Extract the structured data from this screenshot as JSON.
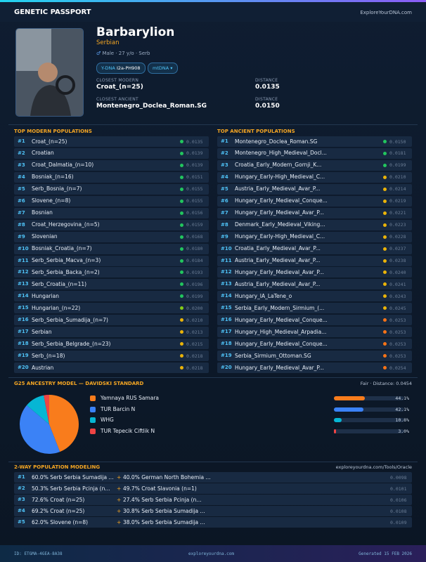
{
  "header": {
    "title": "GENETIC PASSPORT",
    "site": "ExploreYourDNA.com"
  },
  "profile": {
    "name": "Barbarylion",
    "ethnicity": "Serbian",
    "sex": "Male",
    "age": "27 y/o",
    "group": "Serb",
    "ydna_label": "Y-DNA",
    "ydna": "I2a-PH908",
    "mtdna_label": "mtDNA",
    "closest_modern_label": "CLOSEST MODERN",
    "closest_modern": "Croat_(n=25)",
    "modern_distance_label": "DISTANCE",
    "modern_distance": "0.0135",
    "closest_ancient_label": "CLOSEST ANCIENT",
    "closest_ancient": "Montenegro_Doclea_Roman.SG",
    "ancient_distance_label": "DISTANCE",
    "ancient_distance": "0.0150"
  },
  "modern": {
    "title": "TOP MODERN POPULATIONS",
    "rows": [
      {
        "rank": "#1",
        "name": "Croat_(n=25)",
        "distance": "0.0135",
        "dot": "#22c55e"
      },
      {
        "rank": "#2",
        "name": "Croatian",
        "distance": "0.0139",
        "dot": "#22c55e"
      },
      {
        "rank": "#3",
        "name": "Croat_Dalmatia_(n=10)",
        "distance": "0.0139",
        "dot": "#22c55e"
      },
      {
        "rank": "#4",
        "name": "Bosniak_(n=16)",
        "distance": "0.0151",
        "dot": "#22c55e"
      },
      {
        "rank": "#5",
        "name": "Serb_Bosnia_(n=7)",
        "distance": "0.0155",
        "dot": "#22c55e"
      },
      {
        "rank": "#6",
        "name": "Slovene_(n=8)",
        "distance": "0.0155",
        "dot": "#22c55e"
      },
      {
        "rank": "#7",
        "name": "Bosnian",
        "distance": "0.0156",
        "dot": "#22c55e"
      },
      {
        "rank": "#8",
        "name": "Croat_Herzegovina_(n=5)",
        "distance": "0.0159",
        "dot": "#22c55e"
      },
      {
        "rank": "#9",
        "name": "Slovenian",
        "distance": "0.0168",
        "dot": "#22c55e"
      },
      {
        "rank": "#10",
        "name": "Bosniak_Croatia_(n=7)",
        "distance": "0.0180",
        "dot": "#22c55e"
      },
      {
        "rank": "#11",
        "name": "Serb_Serbia_Macva_(n=3)",
        "distance": "0.0184",
        "dot": "#22c55e"
      },
      {
        "rank": "#12",
        "name": "Serb_Serbia_Backa_(n=2)",
        "distance": "0.0193",
        "dot": "#22c55e"
      },
      {
        "rank": "#13",
        "name": "Serb_Croatia_(n=11)",
        "distance": "0.0196",
        "dot": "#22c55e"
      },
      {
        "rank": "#14",
        "name": "Hungarian",
        "distance": "0.0199",
        "dot": "#22c55e"
      },
      {
        "rank": "#15",
        "name": "Hungarian_(n=22)",
        "distance": "0.0200",
        "dot": "#84cc16"
      },
      {
        "rank": "#16",
        "name": "Serb_Serbia_Sumadija_(n=7)",
        "distance": "0.0210",
        "dot": "#eab308"
      },
      {
        "rank": "#17",
        "name": "Serbian",
        "distance": "0.0213",
        "dot": "#eab308"
      },
      {
        "rank": "#18",
        "name": "Serb_Serbia_Belgrade_(n=23)",
        "distance": "0.0215",
        "dot": "#eab308"
      },
      {
        "rank": "#19",
        "name": "Serb_(n=18)",
        "distance": "0.0218",
        "dot": "#eab308"
      },
      {
        "rank": "#20",
        "name": "Austrian",
        "distance": "0.0218",
        "dot": "#eab308"
      }
    ]
  },
  "ancient": {
    "title": "TOP ANCIENT POPULATIONS",
    "rows": [
      {
        "rank": "#1",
        "name": "Montenegro_Doclea_Roman.SG",
        "distance": "0.0150",
        "dot": "#22c55e"
      },
      {
        "rank": "#2",
        "name": "Montenegro_High_Medieval_Docl...",
        "distance": "0.0181",
        "dot": "#22c55e"
      },
      {
        "rank": "#3",
        "name": "Croatia_Early_Modern_Gornji_K...",
        "distance": "0.0199",
        "dot": "#22c55e"
      },
      {
        "rank": "#4",
        "name": "Hungary_Early-High_Medieval_C...",
        "distance": "0.0210",
        "dot": "#eab308"
      },
      {
        "rank": "#5",
        "name": "Austria_Early_Medieval_Avar_P...",
        "distance": "0.0214",
        "dot": "#eab308"
      },
      {
        "rank": "#6",
        "name": "Hungary_Early_Medieval_Conque...",
        "distance": "0.0219",
        "dot": "#eab308"
      },
      {
        "rank": "#7",
        "name": "Hungary_Early_Medieval_Avar_P...",
        "distance": "0.0221",
        "dot": "#eab308"
      },
      {
        "rank": "#8",
        "name": "Denmark_Early_Medieval_Viking...",
        "distance": "0.0223",
        "dot": "#eab308"
      },
      {
        "rank": "#9",
        "name": "Hungary_Early-High_Medieval_C...",
        "distance": "0.0228",
        "dot": "#eab308"
      },
      {
        "rank": "#10",
        "name": "Croatia_Early_Medieval_Avar_P...",
        "distance": "0.0237",
        "dot": "#eab308"
      },
      {
        "rank": "#11",
        "name": "Austria_Early_Medieval_Avar_P...",
        "distance": "0.0238",
        "dot": "#eab308"
      },
      {
        "rank": "#12",
        "name": "Hungary_Early_Medieval_Avar_P...",
        "distance": "0.0240",
        "dot": "#eab308"
      },
      {
        "rank": "#13",
        "name": "Austria_Early_Medieval_Avar_P...",
        "distance": "0.0241",
        "dot": "#eab308"
      },
      {
        "rank": "#14",
        "name": "Hungary_IA_LaTene_o",
        "distance": "0.0243",
        "dot": "#eab308"
      },
      {
        "rank": "#15",
        "name": "Serbia_Early_Modern_Sirmium_(...",
        "distance": "0.0245",
        "dot": "#eab308"
      },
      {
        "rank": "#16",
        "name": "Hungary_Early_Medieval_Conque...",
        "distance": "0.0253",
        "dot": "#f97316"
      },
      {
        "rank": "#17",
        "name": "Hungary_High_Medieval_Arpadia...",
        "distance": "0.0253",
        "dot": "#f97316"
      },
      {
        "rank": "#18",
        "name": "Hungary_Early_Medieval_Conque...",
        "distance": "0.0253",
        "dot": "#f97316"
      },
      {
        "rank": "#19",
        "name": "Serbia_Sirmium_Ottoman.SG",
        "distance": "0.0253",
        "dot": "#f97316"
      },
      {
        "rank": "#20",
        "name": "Hungary_Early_Medieval_Avar_P...",
        "distance": "0.0254",
        "dot": "#f97316"
      }
    ]
  },
  "chart_data": {
    "type": "pie",
    "title": "G25 ANCESTRY MODEL — DAVIDSKI STANDARD",
    "fit": "Fair",
    "fit_distance": "Distance: 0.0454",
    "categories": [
      "Yamnaya RUS Samara",
      "TUR Barcin N",
      "WHG",
      "TUR Tepecik Ciftlik N"
    ],
    "values": [
      44.1,
      42.1,
      10.8,
      3.0
    ],
    "value_labels": [
      "44.1%",
      "42.1%",
      "10.8%",
      "3.0%"
    ],
    "colors": [
      "#f97c1c",
      "#3b82f6",
      "#06b6d4",
      "#ef4444"
    ]
  },
  "modeling": {
    "title": "2-WAY POPULATION MODELING",
    "link": "exploreyourdna.com/Tools/Oracle",
    "rows": [
      {
        "rank": "#1",
        "a": "60.0% Serb Serbia Sumadija ...",
        "b": "40.0% German North Bohemia ...",
        "distance": "0.0098"
      },
      {
        "rank": "#2",
        "a": "50.3% Serb Serbia Pcinja (n...",
        "b": "49.7% Croat Slavonia (n=1)",
        "distance": "0.0101"
      },
      {
        "rank": "#3",
        "a": "72.6% Croat (n=25)",
        "b": "27.4% Serb Serbia Pcinja (n...",
        "distance": "0.0106"
      },
      {
        "rank": "#4",
        "a": "69.2% Croat (n=25)",
        "b": "30.8% Serb Serbia Sumadija ...",
        "distance": "0.0108"
      },
      {
        "rank": "#5",
        "a": "62.0% Slovene (n=8)",
        "b": "38.0% Serb Serbia Sumadija ...",
        "distance": "0.0109"
      }
    ]
  },
  "footer": {
    "id": "ID: ETGMA-4GEA-8A38",
    "site": "exploreyourdna.com",
    "generated": "Generated 15 FEB 2026"
  }
}
